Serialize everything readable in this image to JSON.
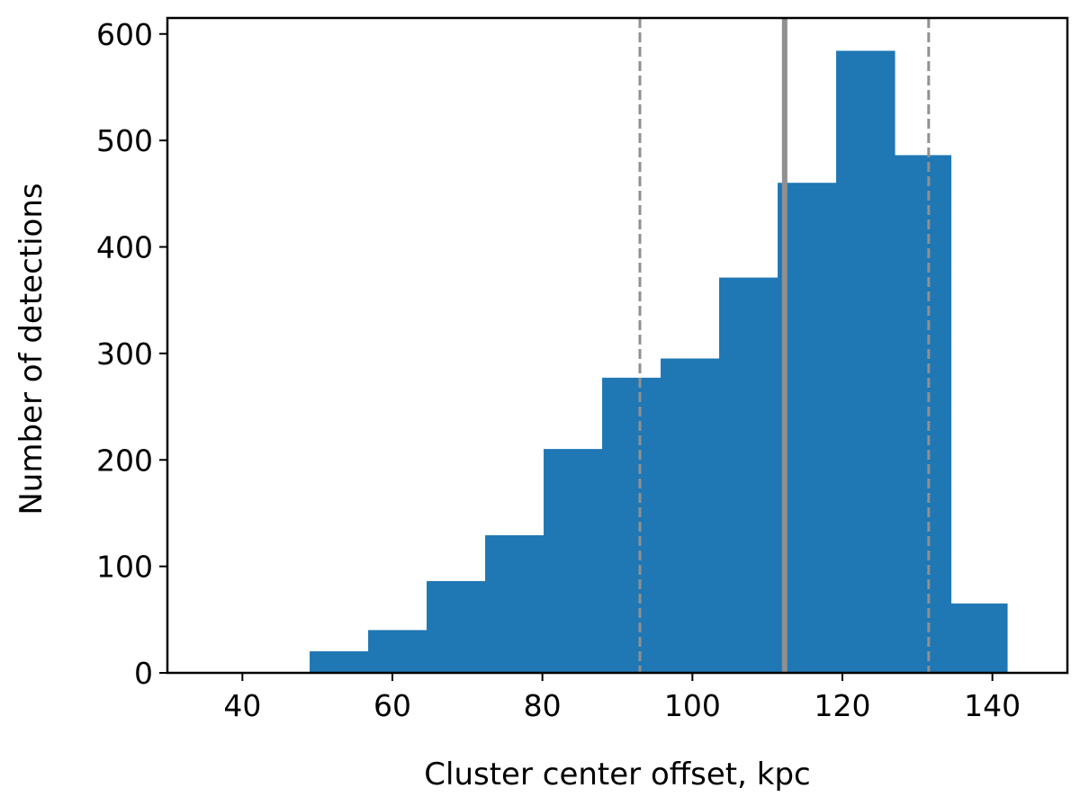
{
  "chart_data": {
    "type": "bar",
    "title": "",
    "xlabel": "Cluster center offset, kpc",
    "ylabel": "Number of detections",
    "xlim": [
      30,
      150
    ],
    "ylim": [
      0,
      615
    ],
    "xticks": [
      40,
      60,
      80,
      100,
      120,
      140
    ],
    "yticks": [
      0,
      100,
      200,
      300,
      400,
      500,
      600
    ],
    "bin_edges": [
      49,
      56.8,
      64.6,
      72.4,
      80.2,
      88,
      95.8,
      103.6,
      111.4,
      119.2,
      127,
      134.5,
      142
    ],
    "values": [
      20,
      40,
      86,
      129,
      210,
      277,
      295,
      371,
      460,
      584,
      486,
      65
    ],
    "bar_color": "#1f77b4",
    "reference_lines": [
      {
        "x": 112.3,
        "style": "solid",
        "color": "#909090"
      },
      {
        "x": 93,
        "style": "dashed",
        "color": "#909090"
      },
      {
        "x": 131.5,
        "style": "dashed",
        "color": "#909090"
      }
    ],
    "grid": false,
    "legend": "none"
  }
}
